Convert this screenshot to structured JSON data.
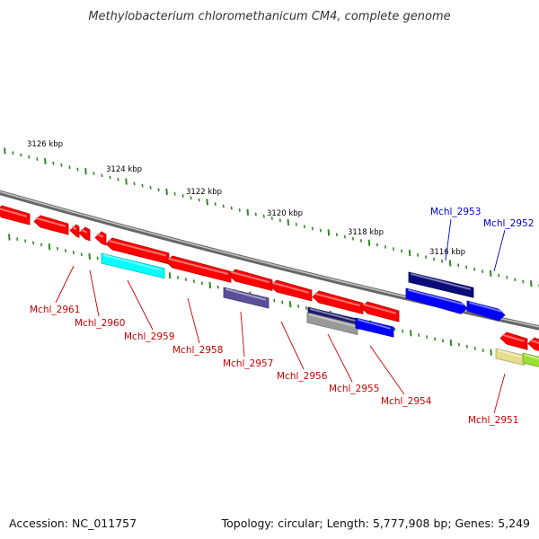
{
  "title": "Methylobacterium chloromethanicum CM4, complete genome",
  "footer": {
    "accession": "Accession: NC_011757",
    "summary": "Topology: circular; Length: 5,777,908 bp; Genes: 5,249"
  },
  "colors": {
    "backbone": "#8a8a8a",
    "tick": "#2e8b22",
    "label_forward": "#0000cc",
    "label_reverse": "#cc0000"
  },
  "scale_labels": [
    "3126 kbp",
    "3124 kbp",
    "3122 kbp",
    "3120 kbp",
    "3118 kbp",
    "3116 kbp"
  ],
  "genes": [
    {
      "name": "Mchl_2961",
      "strand": "reverse",
      "color": "#ff0000"
    },
    {
      "name": "Mchl_2960",
      "strand": "reverse",
      "color": "#ff0000"
    },
    {
      "name": "Mchl_2959",
      "strand": "reverse",
      "color": "#00ffff"
    },
    {
      "name": "Mchl_2958",
      "strand": "reverse",
      "color": "#ff0000"
    },
    {
      "name": "Mchl_2957",
      "strand": "reverse",
      "color": "#5a4f9a"
    },
    {
      "name": "Mchl_2956",
      "strand": "reverse",
      "color": "#ff0000"
    },
    {
      "name": "Mchl_2955",
      "strand": "reverse",
      "color": "#1a1a6e"
    },
    {
      "name": "Mchl_2954",
      "strand": "reverse",
      "color": "#0000ff"
    },
    {
      "name": "Mchl_2953",
      "strand": "forward",
      "color": "#0a0a7a"
    },
    {
      "name": "Mchl_2952",
      "strand": "forward",
      "color": "#0000ff"
    },
    {
      "name": "Mchl_2951",
      "strand": "reverse",
      "color": "#ff0000"
    }
  ]
}
